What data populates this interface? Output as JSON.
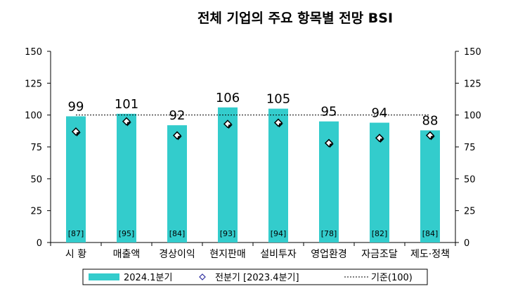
{
  "chart_data": {
    "type": "bar",
    "title": "전체 기업의 주요 항목별 전망 BSI",
    "categories": [
      "시 황",
      "매출액",
      "경상이익",
      "현지판매",
      "설비투자",
      "영업환경",
      "자금조달",
      "제도·정책"
    ],
    "series": [
      {
        "name": "2024.1분기",
        "type": "bar",
        "color": "#33cccc",
        "values": [
          99,
          101,
          92,
          106,
          105,
          95,
          94,
          88
        ]
      },
      {
        "name": "전분기 [2023.4분기]",
        "type": "marker",
        "values": [
          87,
          95,
          84,
          93,
          94,
          78,
          82,
          84
        ]
      }
    ],
    "previous_labels": [
      "[87]",
      "[95]",
      "[84]",
      "[93]",
      "[94]",
      "[78]",
      "[82]",
      "[84]"
    ],
    "reference_line": {
      "name": "기준(100)",
      "value": 100
    },
    "ylim": [
      0,
      150
    ],
    "yticks": [
      0,
      25,
      50,
      75,
      100,
      125,
      150
    ],
    "secondary_axis": true,
    "legend": [
      "2024.1분기",
      "전분기 [2023.4분기]",
      "기준(100)"
    ],
    "legend_position": "bottom",
    "grid": false
  }
}
